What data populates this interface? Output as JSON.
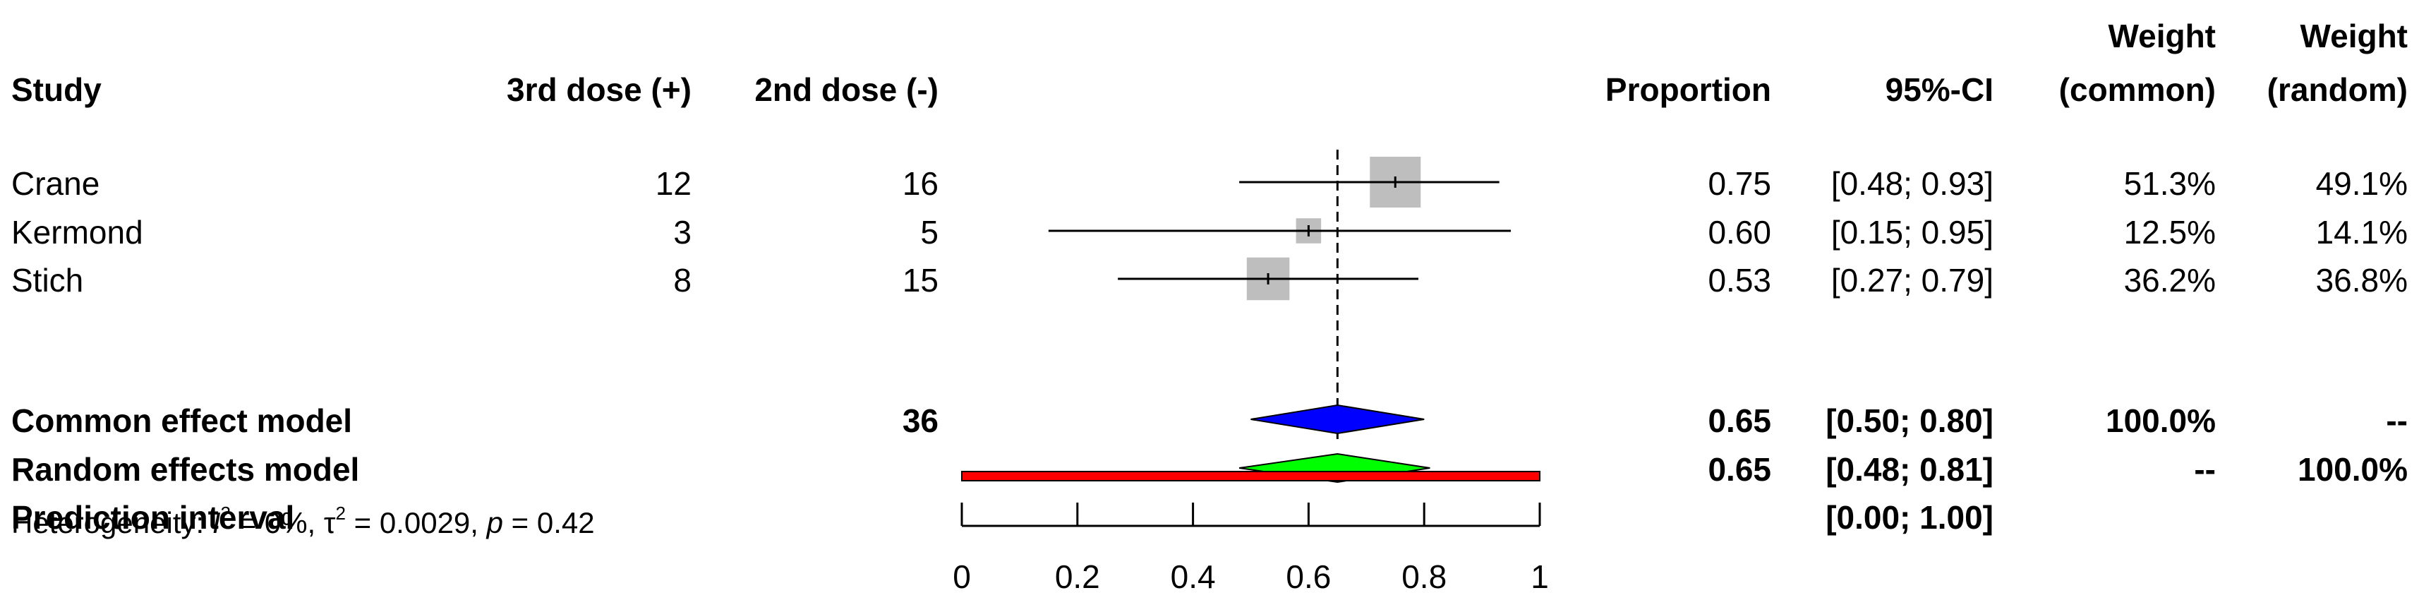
{
  "headers": {
    "study": "Study",
    "events": "3rd dose (+)",
    "total": "2nd dose (-)",
    "proportion": "Proportion",
    "ci": "95%-CI",
    "w_common_1": "Weight",
    "w_common_2": "(common)",
    "w_random_1": "Weight",
    "w_random_2": "(random)"
  },
  "studies": [
    {
      "name": "Crane",
      "events": "12",
      "total": "16",
      "prop": "0.75",
      "ci": "[0.48; 0.93]",
      "w_common": "51.3%",
      "w_random": "49.1%"
    },
    {
      "name": "Kermond",
      "events": "3",
      "total": "5",
      "prop": "0.60",
      "ci": "[0.15; 0.95]",
      "w_common": "12.5%",
      "w_random": "14.1%"
    },
    {
      "name": "Stich",
      "events": "8",
      "total": "15",
      "prop": "0.53",
      "ci": "[0.27; 0.79]",
      "w_common": "36.2%",
      "w_random": "36.8%"
    }
  ],
  "summary": {
    "common": {
      "label": "Common effect model",
      "total": "36",
      "prop": "0.65",
      "ci": "[0.50; 0.80]",
      "w_common": "100.0%",
      "w_random": "--"
    },
    "random": {
      "label": "Random effects model",
      "prop": "0.65",
      "ci": "[0.48; 0.81]",
      "w_common": "--",
      "w_random": "100.0%"
    },
    "prediction": {
      "label": "Prediction interval",
      "ci": "[0.00; 1.00]"
    }
  },
  "heterogeneity": {
    "prefix": "Heterogeneity: ",
    "i": "I",
    "i_sup": "2",
    "i_val": " = 0%, ",
    "tau": "τ",
    "tau_sup": "2",
    "tau_val": " = 0.0029, ",
    "p": "p",
    "p_val": " = 0.42"
  },
  "chart_data": {
    "type": "forest",
    "xlim": [
      0,
      1
    ],
    "ticks": [
      "0",
      "0.2",
      "0.4",
      "0.6",
      "0.8",
      "1"
    ],
    "tick_values": [
      0,
      0.2,
      0.4,
      0.6,
      0.8,
      1
    ],
    "reference_line": 0.65,
    "studies": [
      {
        "name": "Crane",
        "estimate": 0.75,
        "lower": 0.48,
        "upper": 0.93,
        "weight": 51.3
      },
      {
        "name": "Kermond",
        "estimate": 0.6,
        "lower": 0.15,
        "upper": 0.95,
        "weight": 12.5
      },
      {
        "name": "Stich",
        "estimate": 0.53,
        "lower": 0.27,
        "upper": 0.79,
        "weight": 36.2
      }
    ],
    "common": {
      "estimate": 0.65,
      "lower": 0.5,
      "upper": 0.8,
      "color": "#0000ff"
    },
    "random": {
      "estimate": 0.65,
      "lower": 0.48,
      "upper": 0.81,
      "color": "#00ff00"
    },
    "prediction": {
      "lower": 0.0,
      "upper": 1.0,
      "color": "#ff0000"
    },
    "square_color": "#bebebe"
  }
}
